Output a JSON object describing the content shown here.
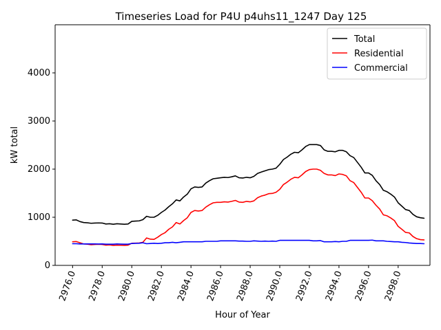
{
  "chart_data": {
    "type": "line",
    "title": "Timeseries Load for P4U p4uhs11_1247  Day 125",
    "xlabel": "Hour of Year",
    "ylabel": "kW total",
    "xlim": [
      2974.82,
      3000.15
    ],
    "ylim": [
      0,
      5000
    ],
    "x_ticks": [
      2976.0,
      2978.0,
      2980.0,
      2982.0,
      2984.0,
      2986.0,
      2988.0,
      2990.0,
      2992.0,
      2994.0,
      2996.0,
      2998.0
    ],
    "x_tick_labels": [
      "2976.0",
      "2978.0",
      "2980.0",
      "2982.0",
      "2984.0",
      "2986.0",
      "2988.0",
      "2990.0",
      "2992.0",
      "2994.0",
      "2996.0",
      "2998.0"
    ],
    "y_ticks": [
      0,
      1000,
      2000,
      3000,
      4000
    ],
    "y_tick_labels": [
      "0",
      "1000",
      "2000",
      "3000",
      "4000"
    ],
    "legend_position": "top-right",
    "x": [
      2976.0,
      2976.25,
      2976.5,
      2976.75,
      2977.0,
      2977.25,
      2977.5,
      2977.75,
      2978.0,
      2978.25,
      2978.5,
      2978.75,
      2979.0,
      2979.25,
      2979.5,
      2979.75,
      2980.0,
      2980.25,
      2980.5,
      2980.75,
      2981.0,
      2981.25,
      2981.5,
      2981.75,
      2982.0,
      2982.25,
      2982.5,
      2982.75,
      2983.0,
      2983.25,
      2983.5,
      2983.75,
      2984.0,
      2984.25,
      2984.5,
      2984.75,
      2985.0,
      2985.25,
      2985.5,
      2985.75,
      2986.0,
      2986.25,
      2986.5,
      2986.75,
      2987.0,
      2987.25,
      2987.5,
      2987.75,
      2988.0,
      2988.25,
      2988.5,
      2988.75,
      2989.0,
      2989.25,
      2989.5,
      2989.75,
      2990.0,
      2990.25,
      2990.5,
      2990.75,
      2991.0,
      2991.25,
      2991.5,
      2991.75,
      2992.0,
      2992.25,
      2992.5,
      2992.75,
      2993.0,
      2993.25,
      2993.5,
      2993.75,
      2994.0,
      2994.25,
      2994.5,
      2994.75,
      2995.0,
      2995.25,
      2995.5,
      2995.75,
      2996.0,
      2996.25,
      2996.5,
      2996.75,
      2997.0,
      2997.25,
      2997.5,
      2997.75,
      2998.0,
      2998.25,
      2998.5,
      2998.75,
      2999.0,
      2999.25,
      2999.5,
      2999.75
    ],
    "series": [
      {
        "name": "Total",
        "color": "#000000",
        "values": [
          940,
          945,
          910,
          890,
          885,
          875,
          880,
          882,
          880,
          860,
          865,
          855,
          865,
          860,
          855,
          860,
          915,
          920,
          925,
          950,
          1020,
          1000,
          1000,
          1040,
          1100,
          1150,
          1220,
          1280,
          1360,
          1340,
          1420,
          1480,
          1590,
          1630,
          1620,
          1630,
          1710,
          1760,
          1800,
          1810,
          1820,
          1830,
          1825,
          1840,
          1860,
          1820,
          1815,
          1830,
          1820,
          1850,
          1910,
          1940,
          1965,
          1990,
          2000,
          2020,
          2100,
          2200,
          2250,
          2310,
          2350,
          2340,
          2400,
          2470,
          2510,
          2510,
          2510,
          2490,
          2400,
          2370,
          2370,
          2360,
          2390,
          2390,
          2360,
          2280,
          2240,
          2140,
          2040,
          1920,
          1920,
          1870,
          1760,
          1680,
          1560,
          1530,
          1480,
          1420,
          1300,
          1230,
          1160,
          1140,
          1060,
          1010,
          990,
          980
        ]
      },
      {
        "name": "Residential",
        "color": "#ff0000",
        "values": [
          490,
          495,
          470,
          445,
          440,
          430,
          435,
          438,
          435,
          420,
          425,
          415,
          420,
          418,
          415,
          420,
          460,
          462,
          465,
          480,
          570,
          545,
          540,
          585,
          640,
          680,
          750,
          800,
          890,
          860,
          930,
          990,
          1100,
          1140,
          1130,
          1140,
          1210,
          1260,
          1300,
          1310,
          1310,
          1320,
          1315,
          1330,
          1350,
          1315,
          1310,
          1330,
          1320,
          1340,
          1405,
          1440,
          1460,
          1490,
          1495,
          1520,
          1580,
          1680,
          1730,
          1790,
          1830,
          1820,
          1880,
          1950,
          1990,
          2000,
          2000,
          1975,
          1910,
          1880,
          1880,
          1865,
          1900,
          1890,
          1860,
          1760,
          1720,
          1620,
          1520,
          1400,
          1400,
          1345,
          1250,
          1170,
          1050,
          1030,
          985,
          930,
          810,
          750,
          685,
          675,
          600,
          555,
          535,
          530
        ]
      },
      {
        "name": "Commercial",
        "color": "#0000ff",
        "values": [
          450,
          450,
          445,
          445,
          445,
          445,
          445,
          444,
          445,
          440,
          440,
          440,
          445,
          442,
          440,
          440,
          455,
          458,
          460,
          470,
          450,
          455,
          460,
          455,
          460,
          470,
          470,
          480,
          470,
          480,
          490,
          490,
          490,
          490,
          490,
          490,
          500,
          500,
          500,
          500,
          510,
          510,
          510,
          510,
          510,
          505,
          505,
          500,
          500,
          510,
          505,
          500,
          505,
          500,
          505,
          500,
          520,
          520,
          520,
          520,
          520,
          520,
          520,
          520,
          520,
          510,
          510,
          515,
          490,
          490,
          490,
          495,
          490,
          500,
          500,
          520,
          520,
          520,
          520,
          520,
          520,
          525,
          510,
          510,
          510,
          500,
          495,
          490,
          490,
          480,
          475,
          465,
          460,
          455,
          455,
          450
        ]
      }
    ]
  }
}
